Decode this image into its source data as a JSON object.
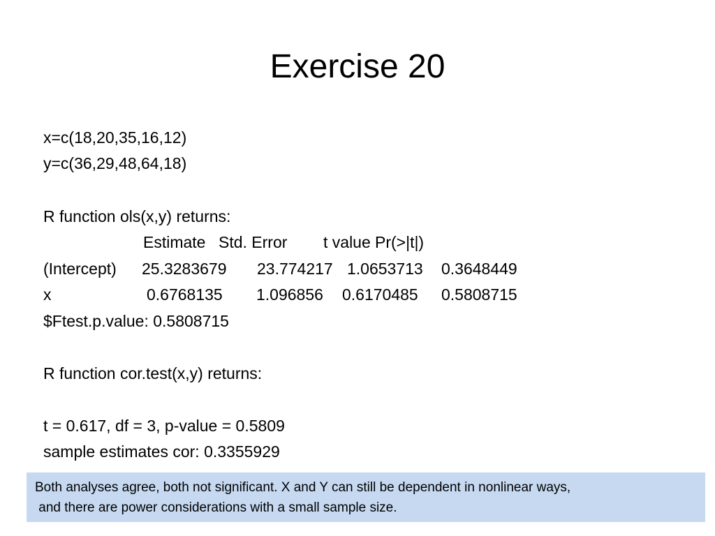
{
  "title": "Exercise 20",
  "lines": {
    "x_def": "x=c(18,20,35,16,12)",
    "y_def": "y=c(36,29,48,64,18)",
    "ols_intro": "R function ols(x,y) returns:",
    "ftest": "$Ftest.p.value: 0.5808715",
    "cor_intro": "R function cor.test(x,y) returns:",
    "cor_stats": "t = 0.617, df = 3, p-value = 0.5809",
    "cor_estimate": "sample estimates cor: 0.3355929"
  },
  "ols_table": {
    "headers": [
      "Estimate",
      "Std. Error",
      "t value",
      "Pr(>|t|)"
    ],
    "rows": [
      {
        "label": "(Intercept)",
        "values": [
          "25.3283679",
          "23.774217",
          "1.0653713",
          "0.3648449"
        ]
      },
      {
        "label": "x",
        "values": [
          "0.6768135",
          "1.096856",
          "0.6170485",
          "0.5808715"
        ]
      }
    ]
  },
  "note": {
    "line1": "Both analyses agree, both not significant. X and Y can still be dependent in nonlinear ways,",
    "line2": " and there are power considerations with a small sample size.",
    "background": "#c6d9f0"
  }
}
